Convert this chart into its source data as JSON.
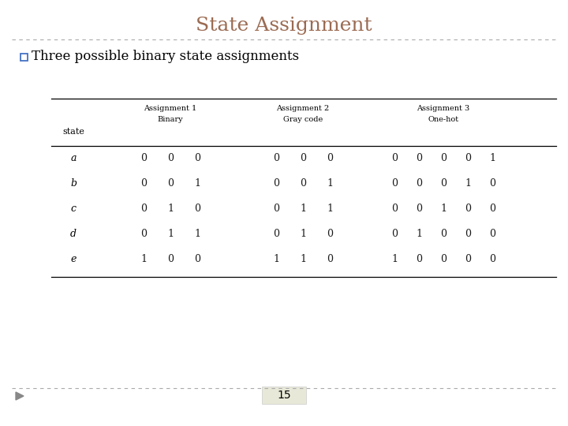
{
  "title": "State Assignment",
  "title_color": "#9b6b52",
  "title_fontsize": 18,
  "bullet_text": "Three possible binary state assignments",
  "bullet_fontsize": 12,
  "bullet_color": "#000000",
  "bullet_box_color": "#4472c4",
  "page_number": "15",
  "background_color": "#ffffff",
  "separator_color": "#aaaaaa",
  "table_text_color": "#1a1a1a",
  "table": {
    "group_labels": [
      "Assignment 1",
      "Assignment 2",
      "Assignment 3"
    ],
    "sub_labels": [
      "Binary",
      "Gray code",
      "One-hot"
    ],
    "row_header": "state",
    "states": [
      "a",
      "b",
      "c",
      "d",
      "e"
    ],
    "data": [
      [
        0,
        0,
        0,
        0,
        0,
        0,
        0,
        0,
        0,
        0,
        1
      ],
      [
        0,
        0,
        1,
        0,
        0,
        1,
        0,
        0,
        0,
        1,
        0
      ],
      [
        0,
        1,
        0,
        0,
        1,
        1,
        0,
        0,
        1,
        0,
        0
      ],
      [
        0,
        1,
        1,
        0,
        1,
        0,
        0,
        1,
        0,
        0,
        0
      ],
      [
        1,
        0,
        0,
        1,
        1,
        0,
        1,
        0,
        0,
        0,
        0
      ]
    ]
  }
}
